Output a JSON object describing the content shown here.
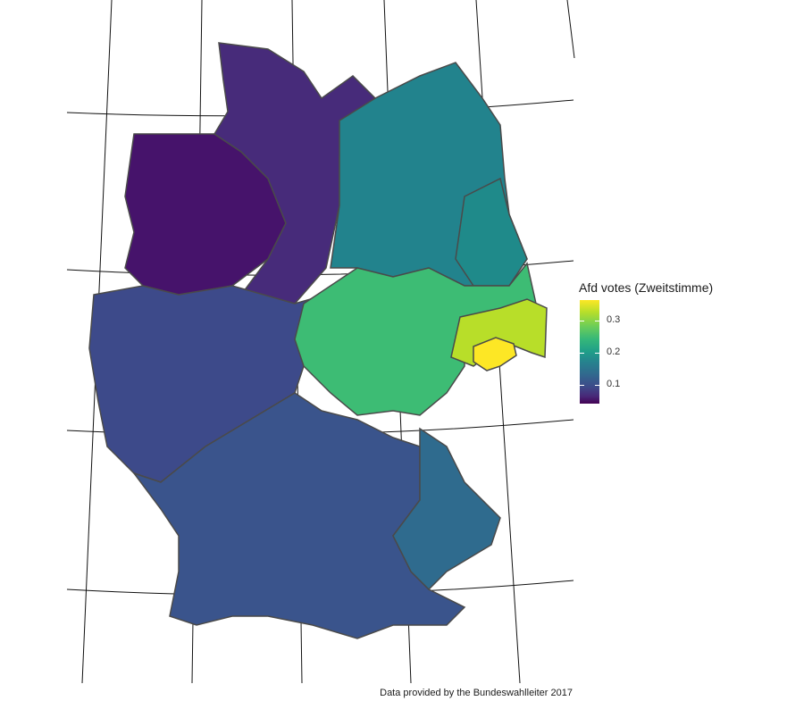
{
  "legend": {
    "title": "Afd votes (Zweitstimme)",
    "ticks": [
      "0.3",
      "0.2",
      "0.1"
    ],
    "colors": [
      "#440154",
      "#3e4989",
      "#26828e",
      "#35b779",
      "#6ece58",
      "#b5de2b",
      "#fde725"
    ]
  },
  "caption": "Data provided by the Bundeswahlleiter 2017",
  "regions": {
    "west_low": "#46136b",
    "northwest": "#472b7a",
    "central_west": "#3d4a8a",
    "south": "#3a548c",
    "bavaria_east": "#2f6b8e",
    "northeast": "#22838d",
    "brandenburg": "#1f8a8a",
    "thuringia": "#3dbc74",
    "saxony_high": "#b8de29",
    "saxony_peak": "#fde725"
  }
}
